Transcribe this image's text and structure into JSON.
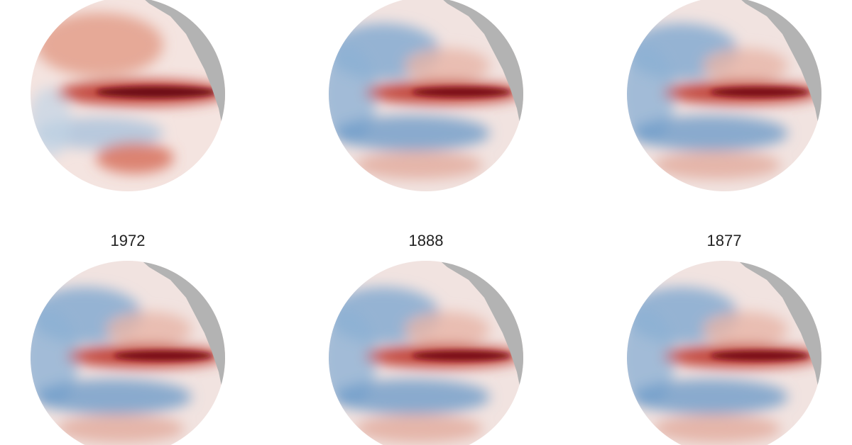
{
  "panels": [
    {
      "label": "1972"
    },
    {
      "label": "1888"
    },
    {
      "label": "1877"
    }
  ]
}
